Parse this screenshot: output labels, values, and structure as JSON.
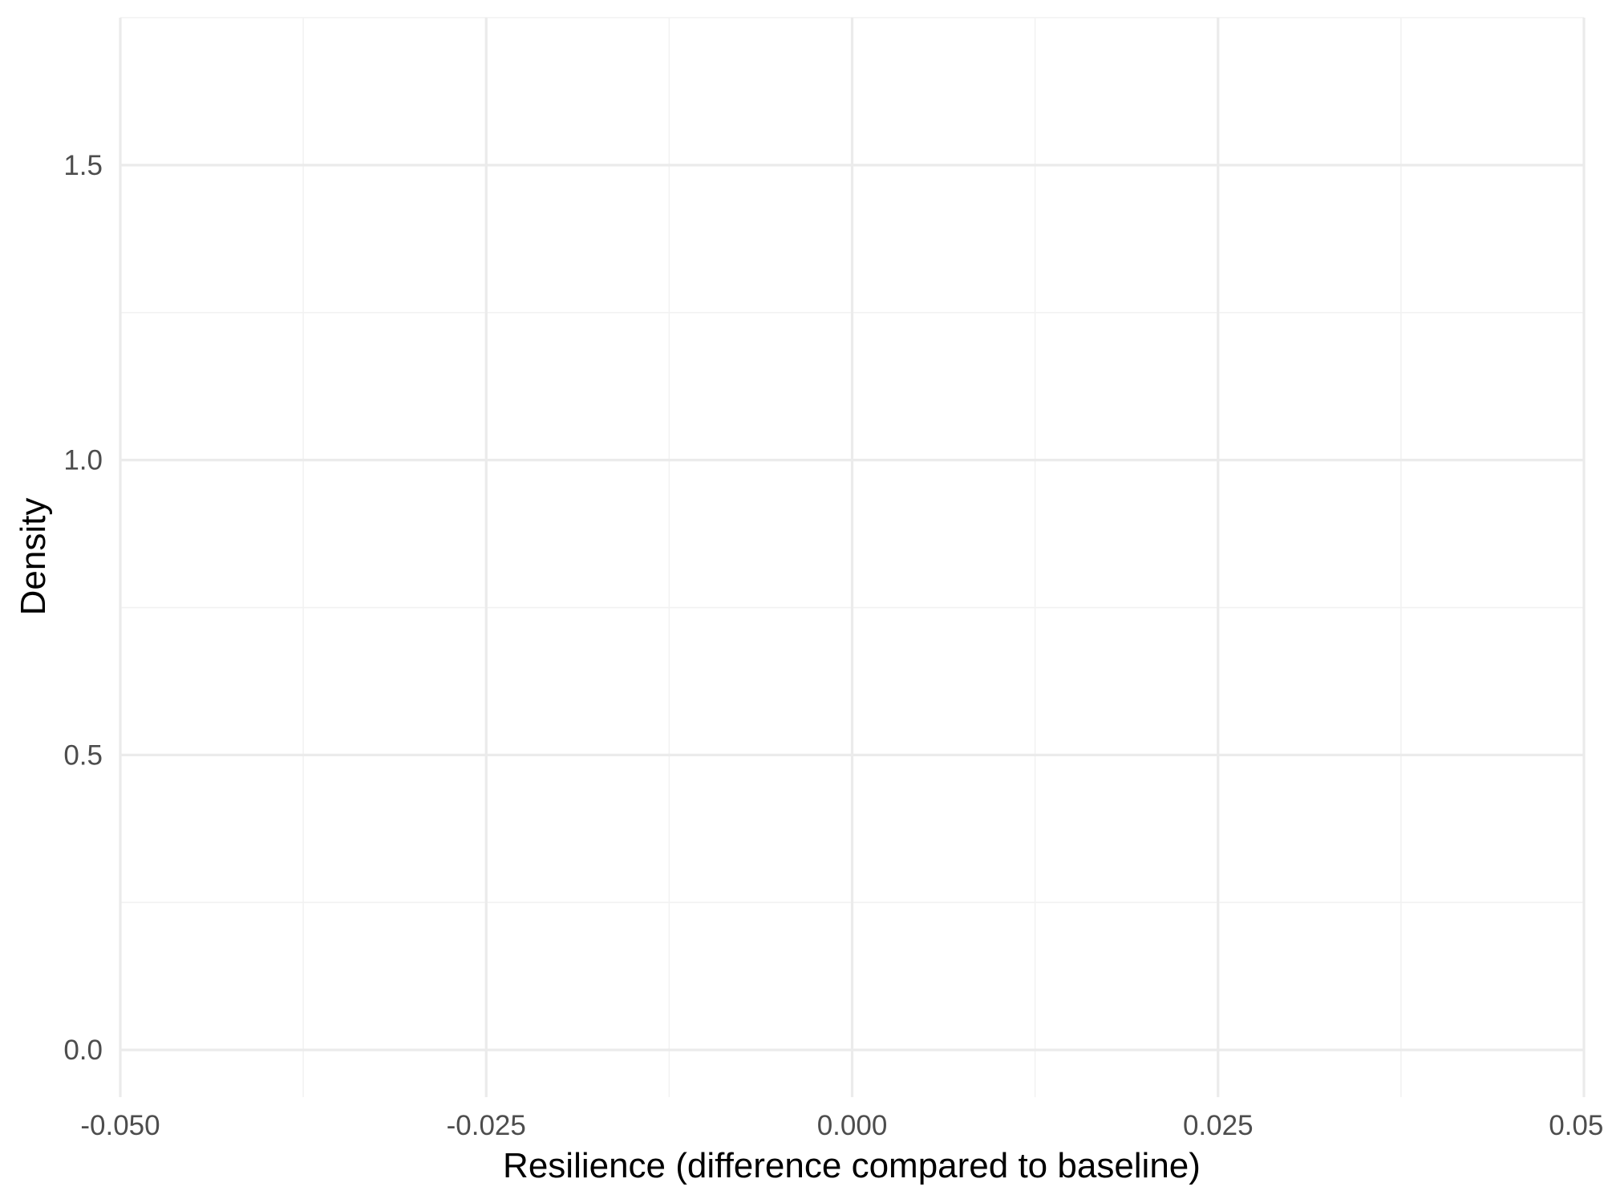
{
  "chart_data": {
    "type": "area",
    "title": "",
    "xlabel": "Resilience (difference compared to baseline)",
    "ylabel": "Density",
    "xlim": [
      -0.05,
      0.05
    ],
    "ylim": [
      -0.08,
      1.75
    ],
    "x_ticks": [
      -0.05,
      -0.025,
      0.0,
      0.025,
      0.05
    ],
    "x_tick_labels": [
      "-0.050",
      "-0.025",
      "0.000",
      "0.025",
      "0.050"
    ],
    "x_minor_ticks": [
      -0.0375,
      -0.0125,
      0.0125,
      0.0375
    ],
    "y_ticks": [
      0.0,
      0.5,
      1.0,
      1.5
    ],
    "y_tick_labels": [
      "0.0",
      "0.5",
      "1.0",
      "1.5"
    ],
    "y_minor_ticks": [
      0.25,
      0.75,
      1.25,
      1.75
    ],
    "series": [],
    "grid": true,
    "legend": "none",
    "colors": {
      "background": "#ffffff",
      "major_grid": "#ebebeb",
      "minor_grid": "#f2f2f2",
      "tick_label": "#4d4d4d",
      "axis_title": "#000000"
    }
  }
}
